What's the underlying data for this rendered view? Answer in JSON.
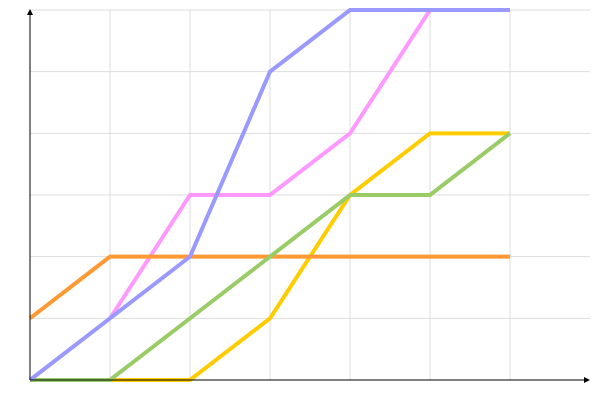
{
  "chart_data": {
    "type": "line",
    "title": "",
    "xlabel": "",
    "ylabel": "",
    "x": [
      0,
      1,
      2,
      3,
      4,
      5,
      6
    ],
    "xlim": [
      0,
      7
    ],
    "ylim": [
      0,
      6
    ],
    "grid": true,
    "legend": "none",
    "series": [
      {
        "color": "#ffcc00",
        "values": [
          0,
          0,
          0,
          1,
          3,
          4,
          4
        ]
      },
      {
        "color": "#ff99ff",
        "values": [
          null,
          1,
          3,
          3,
          4,
          6,
          null
        ]
      },
      {
        "color": "#ff9933",
        "values": [
          1,
          2,
          2,
          2,
          2,
          2,
          2
        ]
      },
      {
        "color": "#99cc66",
        "values": [
          0,
          0,
          1,
          2,
          3,
          3,
          4
        ]
      },
      {
        "color": "#9999ff",
        "values": [
          0,
          1,
          2,
          5,
          6,
          6,
          6
        ]
      }
    ]
  }
}
